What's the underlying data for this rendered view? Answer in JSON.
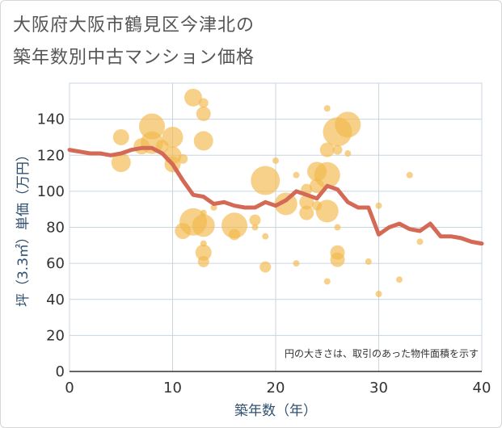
{
  "title_line1": "大阪府大阪市鶴見区今津北の",
  "title_line2": "築年数別中古マンション価格",
  "chart_data": {
    "type": "scatter",
    "xlabel": "築年数（年）",
    "ylabel": "坪（3.3㎡）単価（万円）",
    "xlim": [
      0,
      40
    ],
    "ylim": [
      0,
      160
    ],
    "xticks": [
      0,
      10,
      20,
      30,
      40
    ],
    "yticks": [
      0,
      20,
      40,
      60,
      80,
      100,
      120,
      140
    ],
    "grid": true,
    "annotation": "円の大きさは、取引のあった物件面積を示す",
    "colors": {
      "bubble": "#f2b84b",
      "line": "#d46a55",
      "grid": "#c8d6e0"
    },
    "trend_line": {
      "x": [
        0,
        1,
        2,
        3,
        4,
        5,
        6,
        7,
        8,
        9,
        10,
        11,
        12,
        13,
        14,
        15,
        16,
        17,
        18,
        19,
        20,
        21,
        22,
        23,
        24,
        25,
        26,
        27,
        28,
        29,
        30,
        31,
        32,
        33,
        34,
        35,
        36,
        37,
        38,
        39,
        40
      ],
      "y": [
        123,
        122,
        121,
        121,
        120,
        121,
        123,
        124,
        124,
        121,
        115,
        106,
        98,
        97,
        93,
        94,
        92,
        91,
        91,
        94,
        92,
        95,
        100,
        98,
        96,
        103,
        101,
        94,
        91,
        91,
        76,
        80,
        82,
        79,
        78,
        82,
        75,
        75,
        74,
        72,
        71
      ]
    },
    "bubbles": [
      {
        "x": 5,
        "y": 130,
        "size": 10
      },
      {
        "x": 5,
        "y": 116,
        "size": 12
      },
      {
        "x": 7,
        "y": 125,
        "size": 10
      },
      {
        "x": 8,
        "y": 136,
        "size": 16
      },
      {
        "x": 8,
        "y": 127,
        "size": 14
      },
      {
        "x": 9,
        "y": 125,
        "size": 8
      },
      {
        "x": 10,
        "y": 130,
        "size": 13
      },
      {
        "x": 10,
        "y": 120,
        "size": 11
      },
      {
        "x": 10,
        "y": 115,
        "size": 10
      },
      {
        "x": 11,
        "y": 118,
        "size": 6
      },
      {
        "x": 11,
        "y": 78,
        "size": 10
      },
      {
        "x": 12,
        "y": 152,
        "size": 11
      },
      {
        "x": 12,
        "y": 83,
        "size": 17
      },
      {
        "x": 13,
        "y": 149,
        "size": 6
      },
      {
        "x": 13,
        "y": 143,
        "size": 9
      },
      {
        "x": 13,
        "y": 128,
        "size": 12
      },
      {
        "x": 13,
        "y": 88,
        "size": 4
      },
      {
        "x": 13,
        "y": 81,
        "size": 14
      },
      {
        "x": 13,
        "y": 71,
        "size": 4
      },
      {
        "x": 13,
        "y": 66,
        "size": 10
      },
      {
        "x": 13,
        "y": 61,
        "size": 7
      },
      {
        "x": 14,
        "y": 91,
        "size": 4
      },
      {
        "x": 16,
        "y": 81,
        "size": 16
      },
      {
        "x": 16,
        "y": 76,
        "size": 7
      },
      {
        "x": 18,
        "y": 84,
        "size": 7
      },
      {
        "x": 18,
        "y": 80,
        "size": 4
      },
      {
        "x": 19,
        "y": 106,
        "size": 18
      },
      {
        "x": 19,
        "y": 75,
        "size": 4
      },
      {
        "x": 19,
        "y": 58,
        "size": 7
      },
      {
        "x": 20,
        "y": 117,
        "size": 4
      },
      {
        "x": 21,
        "y": 93,
        "size": 14
      },
      {
        "x": 22,
        "y": 109,
        "size": 4
      },
      {
        "x": 22,
        "y": 60,
        "size": 4
      },
      {
        "x": 23,
        "y": 101,
        "size": 7
      },
      {
        "x": 23,
        "y": 94,
        "size": 9
      },
      {
        "x": 23,
        "y": 88,
        "size": 9
      },
      {
        "x": 24,
        "y": 111,
        "size": 12
      },
      {
        "x": 24,
        "y": 103,
        "size": 9
      },
      {
        "x": 24,
        "y": 92,
        "size": 6
      },
      {
        "x": 25,
        "y": 146,
        "size": 4
      },
      {
        "x": 25,
        "y": 123,
        "size": 9
      },
      {
        "x": 25,
        "y": 109,
        "size": 16
      },
      {
        "x": 25,
        "y": 89,
        "size": 14
      },
      {
        "x": 25,
        "y": 50,
        "size": 4
      },
      {
        "x": 26,
        "y": 133,
        "size": 18
      },
      {
        "x": 26,
        "y": 123,
        "size": 6
      },
      {
        "x": 26,
        "y": 80,
        "size": 4
      },
      {
        "x": 26,
        "y": 66,
        "size": 9
      },
      {
        "x": 26,
        "y": 62,
        "size": 9
      },
      {
        "x": 27,
        "y": 137,
        "size": 16
      },
      {
        "x": 27,
        "y": 121,
        "size": 4
      },
      {
        "x": 29,
        "y": 61,
        "size": 4
      },
      {
        "x": 30,
        "y": 92,
        "size": 4
      },
      {
        "x": 30,
        "y": 43,
        "size": 4
      },
      {
        "x": 32,
        "y": 51,
        "size": 4
      },
      {
        "x": 33,
        "y": 109,
        "size": 4
      },
      {
        "x": 34,
        "y": 72,
        "size": 4
      }
    ]
  }
}
